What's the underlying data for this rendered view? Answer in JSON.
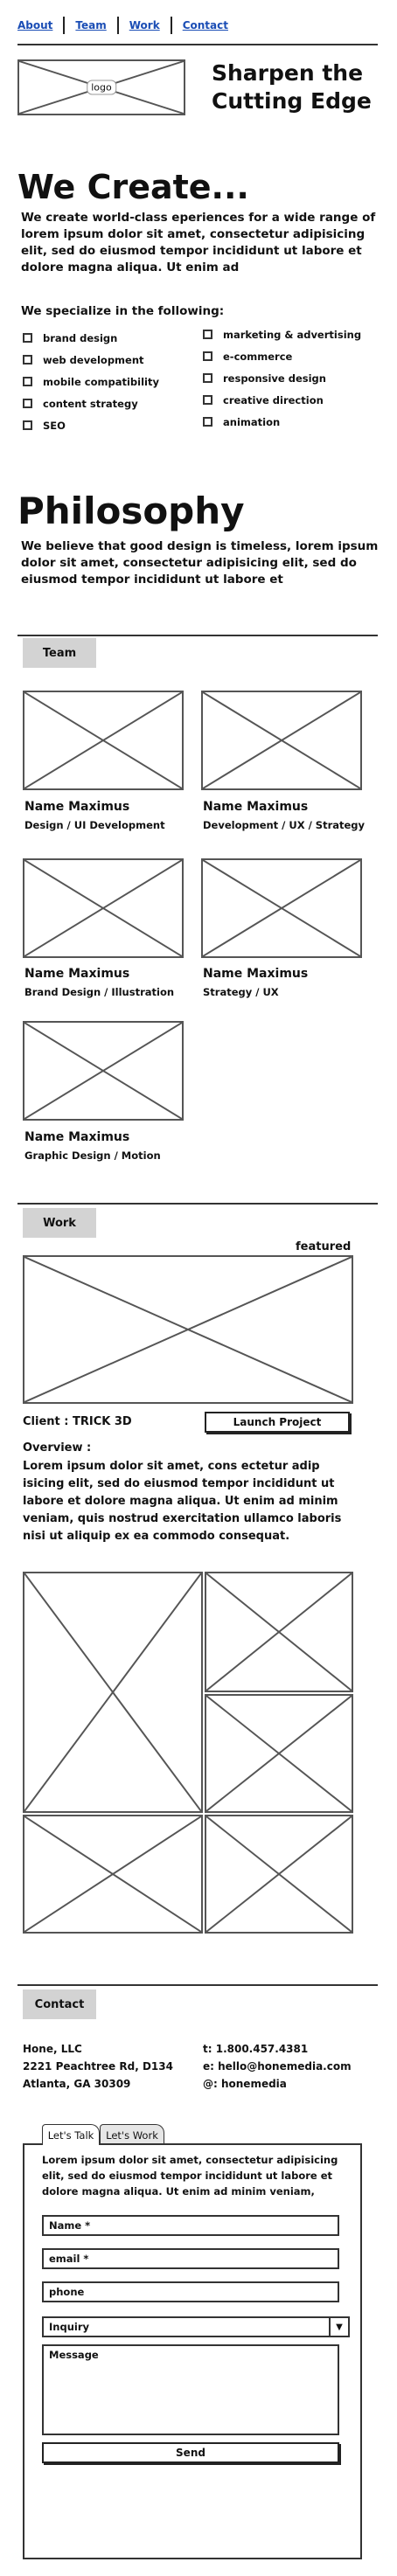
{
  "nav": {
    "items": [
      "About",
      "Team",
      "Work",
      "Contact"
    ]
  },
  "header": {
    "logo_text": "logo",
    "tagline": "Sharpen the Cutting Edge"
  },
  "create": {
    "title": "We Create...",
    "body": "We create world-class eperiences for a wide range of lorem ipsum dolor sit amet, consectetur adipisicing elit, sed do eiusmod tempor incididunt ut labore et dolore magna aliqua. Ut enim ad",
    "specialize_title": "We specialize in the following:",
    "left_items": [
      "brand design",
      "web development",
      "mobile compatibility",
      "content strategy",
      "SEO"
    ],
    "right_items": [
      "marketing & advertising",
      "e-commerce",
      "responsive design",
      "creative direction",
      "animation"
    ]
  },
  "philosophy": {
    "title": "Philosophy",
    "body": "We believe that good design is timeless, lorem ipsum dolor sit amet, consectetur adipisicing elit, sed do eiusmod tempor incididunt ut labore et"
  },
  "team": {
    "tab_label": "Team",
    "members": [
      {
        "name": "Name Maximus",
        "role": "Design / UI Development"
      },
      {
        "name": "Name Maximus",
        "role": "Development / UX / Strategy"
      },
      {
        "name": "Name Maximus",
        "role": "Brand Design / Illustration"
      },
      {
        "name": "Name Maximus",
        "role": "Strategy / UX"
      },
      {
        "name": "Name Maximus",
        "role": "Graphic Design / Motion"
      }
    ]
  },
  "work": {
    "tab_label": "Work",
    "featured_label": "featured",
    "client_label": "Client : TRICK 3D",
    "launch_button": "Launch Project",
    "overview_title": "Overview :",
    "overview_body": "Lorem ipsum dolor sit amet, cons ectetur adip isicing elit, sed do eiusmod tempor incididunt ut labore et dolore magna aliqua. Ut enim ad minim veniam, quis nostrud exercitation ullamco laboris nisi ut aliquip ex ea commodo consequat."
  },
  "contact": {
    "tab_label": "Contact",
    "address": [
      "Hone, LLC",
      "2221 Peachtree Rd, D134",
      "Atlanta, GA 30309"
    ],
    "details": [
      "t: 1.800.457.4381",
      "e: hello@honemedia.com",
      "@: honemedia"
    ],
    "tabs": [
      "Let's Talk",
      "Let's Work"
    ],
    "form_intro": "Lorem ipsum dolor sit amet, consectetur adipisicing elit, sed do eiusmod tempor incididunt ut labore et dolore magna aliqua. Ut enim ad minim veniam,",
    "fields": {
      "name": "Name *",
      "email": "email *",
      "phone": "phone",
      "inquiry": "Inquiry",
      "message": "Message"
    },
    "send_button": "Send"
  }
}
